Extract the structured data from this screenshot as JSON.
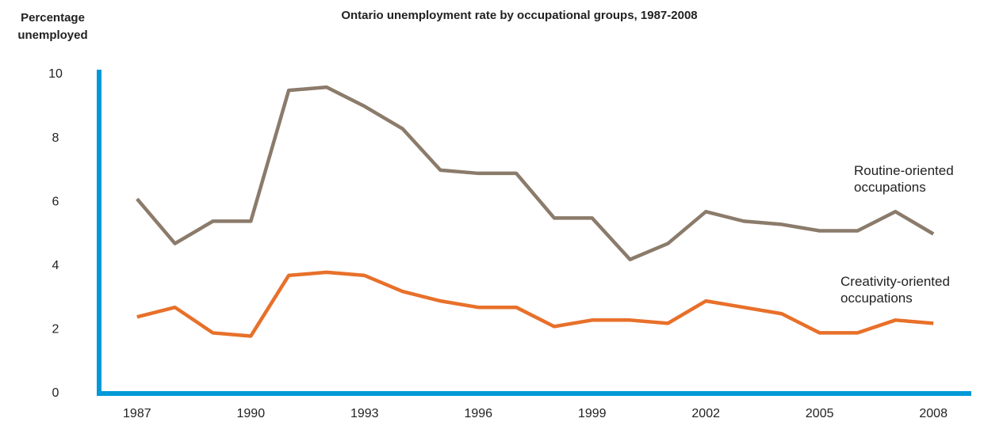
{
  "chart_data": {
    "type": "line",
    "title": "Ontario unemployment rate by occupational groups, 1987-2008",
    "y_label": "Percentage unemployed",
    "x": [
      1987,
      1988,
      1989,
      1990,
      1991,
      1992,
      1993,
      1994,
      1995,
      1996,
      1997,
      1998,
      1999,
      2000,
      2001,
      2002,
      2003,
      2004,
      2005,
      2006,
      2007,
      2008
    ],
    "series": [
      {
        "name": "Routine-oriented occupations",
        "color": "#8b7b6b",
        "values": [
          6.1,
          4.7,
          5.4,
          5.4,
          9.5,
          9.6,
          9.0,
          8.3,
          7.0,
          6.9,
          6.9,
          5.5,
          5.5,
          4.2,
          4.7,
          5.7,
          5.4,
          5.3,
          5.1,
          5.1,
          5.7,
          5.0
        ]
      },
      {
        "name": "Creativity-oriented occupations",
        "color": "#e8702a",
        "values": [
          2.4,
          2.7,
          1.9,
          1.8,
          3.7,
          3.8,
          3.7,
          3.2,
          2.9,
          2.7,
          2.7,
          2.1,
          2.3,
          2.3,
          2.2,
          2.9,
          2.7,
          2.5,
          1.9,
          1.9,
          2.3,
          2.2
        ]
      }
    ],
    "xlim": [
      1986,
      2009
    ],
    "xticks": [
      1987,
      1990,
      1993,
      1996,
      1999,
      2002,
      2005,
      2008
    ],
    "ylim": [
      0,
      10
    ],
    "yticks": [
      0,
      2,
      4,
      6,
      8,
      10
    ],
    "axis_color": "#0099d8",
    "grid": false
  }
}
